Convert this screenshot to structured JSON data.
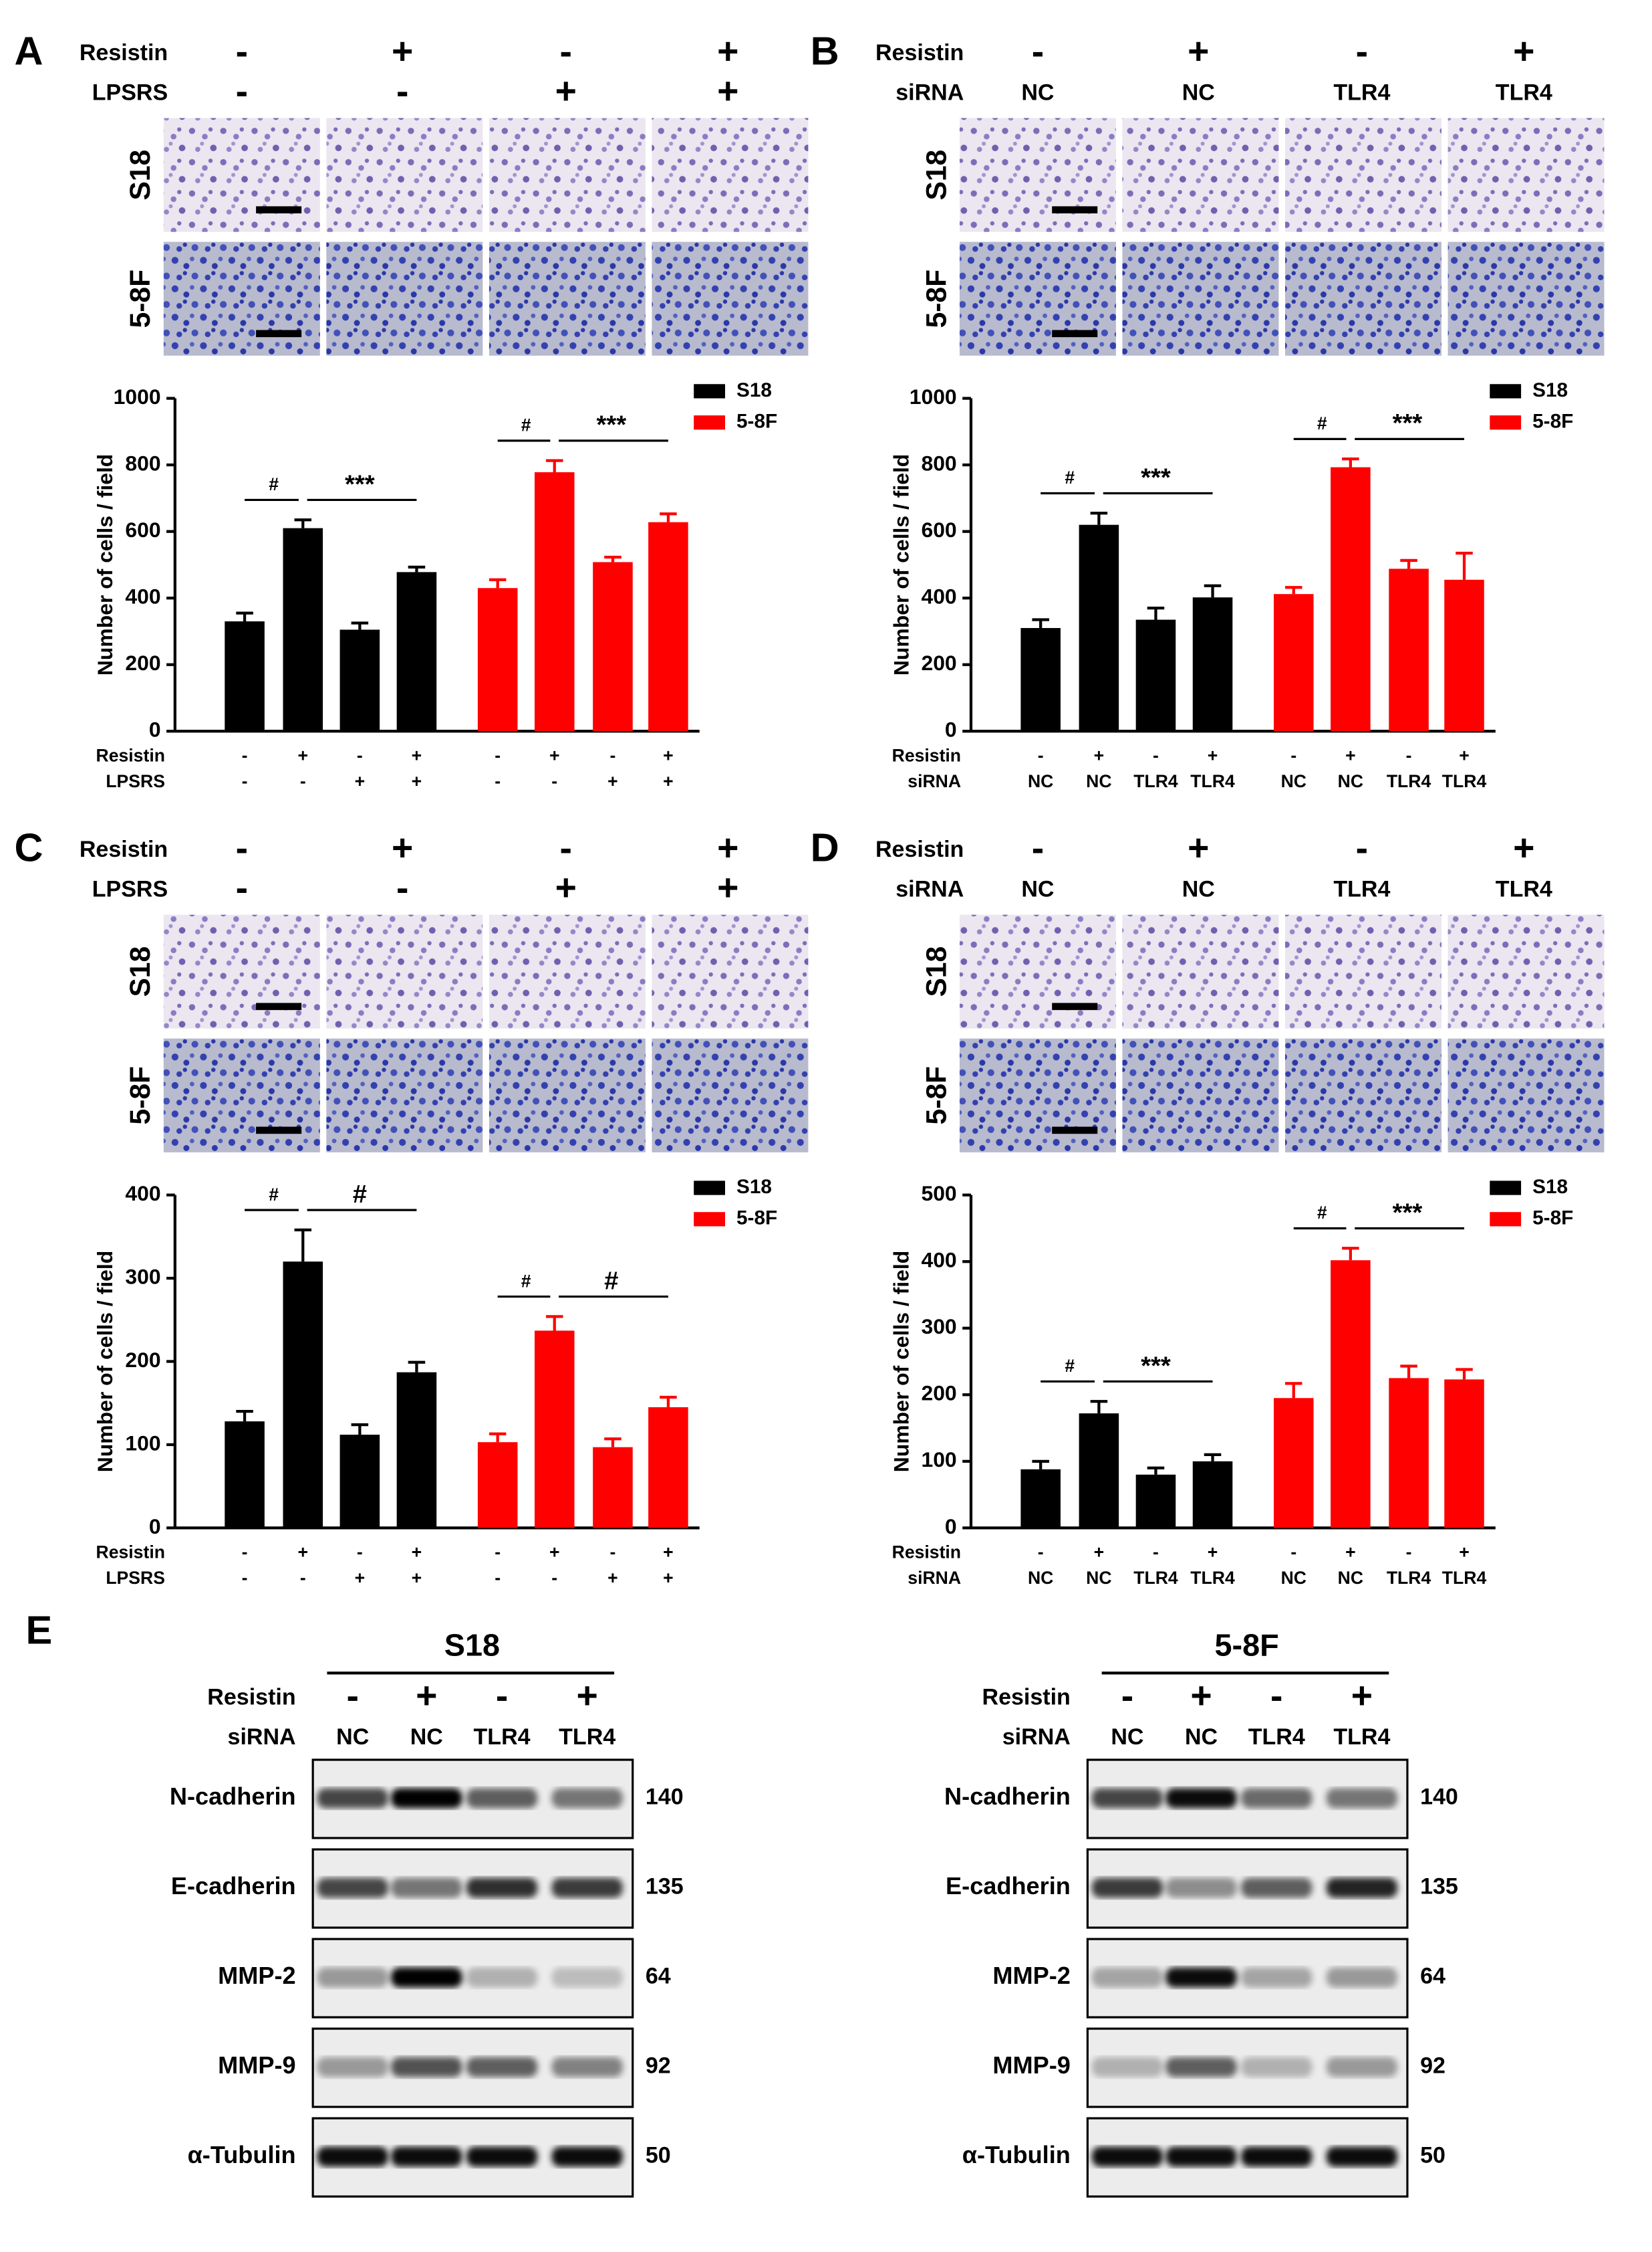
{
  "panels": [
    {
      "label": "A",
      "header": [
        {
          "name": "Resistin",
          "values": [
            "-",
            "+",
            "-",
            "+"
          ]
        },
        {
          "name": "LPSRS",
          "values": [
            "-",
            "-",
            "+",
            "+"
          ]
        }
      ],
      "image_rows": [
        "S18",
        "5-8F"
      ]
    },
    {
      "label": "B",
      "header": [
        {
          "name": "Resistin",
          "values": [
            "-",
            "+",
            "-",
            "+"
          ]
        },
        {
          "name": "siRNA",
          "values": [
            "NC",
            "NC",
            "TLR4",
            "TLR4"
          ]
        }
      ],
      "image_rows": [
        "S18",
        "5-8F"
      ]
    },
    {
      "label": "C",
      "header": [
        {
          "name": "Resistin",
          "values": [
            "-",
            "+",
            "-",
            "+"
          ]
        },
        {
          "name": "LPSRS",
          "values": [
            "-",
            "-",
            "+",
            "+"
          ]
        }
      ],
      "image_rows": [
        "S18",
        "5-8F"
      ]
    },
    {
      "label": "D",
      "header": [
        {
          "name": "Resistin",
          "values": [
            "-",
            "+",
            "-",
            "+"
          ]
        },
        {
          "name": "siRNA",
          "values": [
            "NC",
            "NC",
            "TLR4",
            "TLR4"
          ]
        }
      ],
      "image_rows": [
        "S18",
        "5-8F"
      ]
    }
  ],
  "chart_data": [
    {
      "type": "bar",
      "y_label": "Number of cells / field",
      "ylim": [
        0,
        1000
      ],
      "yticks": [
        0,
        200,
        400,
        600,
        800,
        1000
      ],
      "category_rows": [
        {
          "name": "Resistin",
          "values": [
            "-",
            "+",
            "-",
            "+",
            "-",
            "+",
            "-",
            "+"
          ]
        },
        {
          "name": "LPSRS",
          "values": [
            "-",
            "-",
            "+",
            "+",
            "-",
            "-",
            "+",
            "+"
          ]
        }
      ],
      "series": [
        {
          "name": "S18",
          "color": "#000000",
          "values": [
            330,
            610,
            305,
            478,
            null,
            null,
            null,
            null
          ],
          "errors": [
            25,
            25,
            20,
            15,
            null,
            null,
            null,
            null
          ],
          "annotations": [
            "#",
            "***"
          ]
        },
        {
          "name": "5-8F",
          "color": "#ff0000",
          "values": [
            null,
            null,
            null,
            null,
            430,
            778,
            508,
            628
          ],
          "errors": [
            null,
            null,
            null,
            null,
            25,
            35,
            15,
            25
          ],
          "annotations": [
            "#",
            "***"
          ]
        }
      ]
    },
    {
      "type": "bar",
      "y_label": "Number of cells / field",
      "ylim": [
        0,
        1000
      ],
      "yticks": [
        0,
        200,
        400,
        600,
        800,
        1000
      ],
      "category_rows": [
        {
          "name": "Resistin",
          "values": [
            "-",
            "+",
            "-",
            "+",
            "-",
            "+",
            "-",
            "+"
          ]
        },
        {
          "name": "siRNA",
          "values": [
            "NC",
            "NC",
            "TLR4",
            "TLR4",
            "NC",
            "NC",
            "TLR4",
            "TLR4"
          ]
        }
      ],
      "series": [
        {
          "name": "S18",
          "color": "#000000",
          "values": [
            310,
            620,
            335,
            402,
            null,
            null,
            null,
            null
          ],
          "errors": [
            25,
            35,
            35,
            35,
            null,
            null,
            null,
            null
          ],
          "annotations": [
            "#",
            "***"
          ]
        },
        {
          "name": "5-8F",
          "color": "#ff0000",
          "values": [
            null,
            null,
            null,
            null,
            412,
            793,
            488,
            455
          ],
          "errors": [
            null,
            null,
            null,
            null,
            20,
            25,
            25,
            80
          ],
          "annotations": [
            "#",
            "***"
          ]
        }
      ]
    },
    {
      "type": "bar",
      "y_label": "Number of cells / field",
      "ylim": [
        0,
        400
      ],
      "yticks": [
        0,
        100,
        200,
        300,
        400
      ],
      "category_rows": [
        {
          "name": "Resistin",
          "values": [
            "-",
            "+",
            "-",
            "+",
            "-",
            "+",
            "-",
            "+"
          ]
        },
        {
          "name": "LPSRS",
          "values": [
            "-",
            "-",
            "+",
            "+",
            "-",
            "-",
            "+",
            "+"
          ]
        }
      ],
      "series": [
        {
          "name": "S18",
          "color": "#000000",
          "values": [
            128,
            320,
            112,
            187,
            null,
            null,
            null,
            null
          ],
          "errors": [
            12,
            38,
            12,
            12,
            null,
            null,
            null,
            null
          ],
          "annotations": [
            "#",
            "#"
          ]
        },
        {
          "name": "5-8F",
          "color": "#ff0000",
          "values": [
            null,
            null,
            null,
            null,
            103,
            237,
            97,
            145
          ],
          "errors": [
            null,
            null,
            null,
            null,
            10,
            17,
            10,
            12
          ],
          "annotations": [
            "#",
            "#"
          ]
        }
      ]
    },
    {
      "type": "bar",
      "y_label": "Number of cells / field",
      "ylim": [
        0,
        500
      ],
      "yticks": [
        0,
        100,
        200,
        300,
        400,
        500
      ],
      "category_rows": [
        {
          "name": "Resistin",
          "values": [
            "-",
            "+",
            "-",
            "+",
            "-",
            "+",
            "-",
            "+"
          ]
        },
        {
          "name": "siRNA",
          "values": [
            "NC",
            "NC",
            "TLR4",
            "TLR4",
            "NC",
            "NC",
            "TLR4",
            "TLR4"
          ]
        }
      ],
      "series": [
        {
          "name": "S18",
          "color": "#000000",
          "values": [
            88,
            172,
            80,
            100,
            null,
            null,
            null,
            null
          ],
          "errors": [
            12,
            18,
            10,
            10,
            null,
            null,
            null,
            null
          ],
          "annotations": [
            "#",
            "***"
          ]
        },
        {
          "name": "5-8F",
          "color": "#ff0000",
          "values": [
            null,
            null,
            null,
            null,
            195,
            402,
            225,
            223
          ],
          "errors": [
            null,
            null,
            null,
            null,
            22,
            18,
            18,
            15
          ],
          "annotations": [
            "#",
            "***"
          ]
        }
      ]
    }
  ],
  "blot": {
    "label": "E",
    "groups": [
      {
        "title": "S18",
        "header": [
          {
            "name": "Resistin",
            "values": [
              "-",
              "+",
              "-",
              "+"
            ]
          },
          {
            "name": "siRNA",
            "values": [
              "NC",
              "NC",
              "TLR4",
              "TLR4"
            ]
          }
        ],
        "proteins": [
          {
            "name": "N-cadherin",
            "mw": 140
          },
          {
            "name": "E-cadherin",
            "mw": 135
          },
          {
            "name": "MMP-2",
            "mw": 64
          },
          {
            "name": "MMP-9",
            "mw": 92
          },
          {
            "name": "α-Tubulin",
            "mw": 50
          }
        ]
      },
      {
        "title": "5-8F",
        "header": [
          {
            "name": "Resistin",
            "values": [
              "-",
              "+",
              "-",
              "+"
            ]
          },
          {
            "name": "siRNA",
            "values": [
              "NC",
              "NC",
              "TLR4",
              "TLR4"
            ]
          }
        ],
        "proteins": [
          {
            "name": "N-cadherin",
            "mw": 140
          },
          {
            "name": "E-cadherin",
            "mw": 135
          },
          {
            "name": "MMP-2",
            "mw": 64
          },
          {
            "name": "MMP-9",
            "mw": 92
          },
          {
            "name": "α-Tubulin",
            "mw": 50
          }
        ]
      }
    ]
  }
}
